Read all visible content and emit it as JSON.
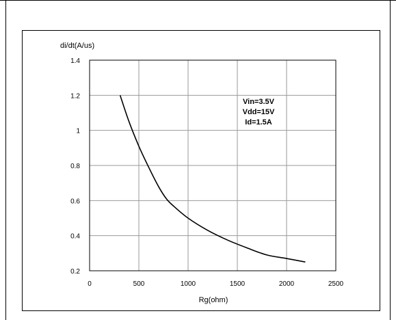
{
  "chart_data": {
    "type": "line",
    "title": "",
    "xlabel": "Rg(ohm)",
    "ylabel": "di/dt(A/us)",
    "xlim": [
      0,
      2500
    ],
    "ylim": [
      0.2,
      1.4
    ],
    "x_ticks": [
      0,
      500,
      1000,
      1500,
      2000,
      2500
    ],
    "y_ticks": [
      0.2,
      0.4,
      0.6,
      0.8,
      1,
      1.2,
      1.4
    ],
    "x_tick_labels": [
      "0",
      "500",
      "1000",
      "1500",
      "2000",
      "2500"
    ],
    "y_tick_labels": [
      "0.2",
      "0.4",
      "0.6",
      "0.8",
      "1",
      "1.2",
      "1.4"
    ],
    "grid": true,
    "annotations": [
      "Vin=3.5V",
      "Vdd=15V",
      "Id=1.5A"
    ],
    "series": [
      {
        "x": [
          310,
          400,
          500,
          600,
          700,
          780,
          850,
          1000,
          1200,
          1400,
          1600,
          1800,
          2000,
          2190
        ],
        "y": [
          1.2,
          1.05,
          0.91,
          0.79,
          0.68,
          0.61,
          0.57,
          0.5,
          0.43,
          0.375,
          0.33,
          0.29,
          0.27,
          0.25
        ],
        "color": "#000000"
      }
    ]
  }
}
